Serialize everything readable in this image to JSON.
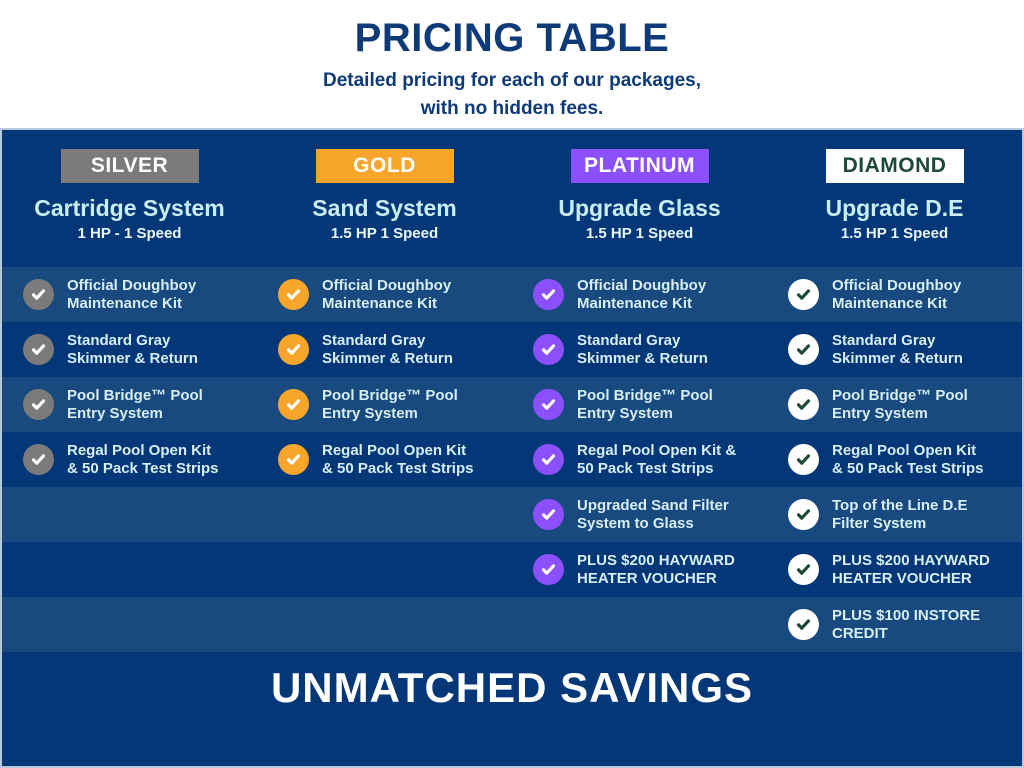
{
  "header": {
    "title": "PRICING TABLE",
    "subtitle_line1": "Detailed pricing for each of our packages,",
    "subtitle_line2": "with no hidden fees."
  },
  "columns": [
    {
      "tier": "SILVER",
      "title": "Cartridge System",
      "spec": "1 HP - 1 Speed",
      "badge_bg": "#7b7b7b",
      "badge_color": "#ffffff",
      "check_bg": "#7b7b7b",
      "check_color": "#ffffff"
    },
    {
      "tier": "GOLD",
      "title": "Sand System",
      "spec": "1.5 HP 1 Speed",
      "badge_bg": "#f8a62b",
      "badge_color": "#ffffff",
      "check_bg": "#f8a62b",
      "check_color": "#ffffff"
    },
    {
      "tier": "PLATINUM",
      "title": "Upgrade Glass",
      "spec": "1.5 HP 1 Speed",
      "badge_bg": "#8b50fb",
      "badge_color": "#ffffff",
      "check_bg": "#8b50fb",
      "check_color": "#ffffff"
    },
    {
      "tier": "DIAMOND",
      "title": "Upgrade D.E",
      "spec": "1.5 HP 1 Speed",
      "badge_bg": "#ffffff",
      "badge_color": "#1c4a36",
      "check_bg": "#ffffff",
      "check_color": "#1c4a34"
    }
  ],
  "feature_rows": [
    {
      "cells": [
        [
          "Official Doughboy",
          "Maintenance Kit"
        ],
        [
          "Official Doughboy",
          "Maintenance Kit"
        ],
        [
          "Official Doughboy",
          "Maintenance Kit"
        ],
        [
          "Official Doughboy",
          "Maintenance Kit"
        ]
      ]
    },
    {
      "cells": [
        [
          "Standard Gray",
          "Skimmer & Return"
        ],
        [
          "Standard Gray",
          "Skimmer & Return"
        ],
        [
          "Standard Gray",
          "Skimmer & Return"
        ],
        [
          "Standard Gray",
          "Skimmer & Return"
        ]
      ]
    },
    {
      "cells": [
        [
          "Pool Bridge™ Pool",
          "Entry System"
        ],
        [
          "Pool Bridge™ Pool",
          "Entry System"
        ],
        [
          "Pool Bridge™ Pool",
          "Entry System"
        ],
        [
          "Pool Bridge™ Pool",
          "Entry System"
        ]
      ]
    },
    {
      "cells": [
        [
          "Regal Pool Open Kit",
          "& 50 Pack Test Strips"
        ],
        [
          "Regal Pool Open Kit",
          "& 50 Pack Test Strips"
        ],
        [
          "Regal Pool Open Kit &",
          "50 Pack Test Strips"
        ],
        [
          "Regal Pool Open Kit",
          "& 50 Pack Test Strips"
        ]
      ]
    },
    {
      "cells": [
        null,
        null,
        [
          "Upgraded Sand Filter",
          "System to Glass"
        ],
        [
          "Top of the Line D.E",
          "Filter System"
        ]
      ]
    },
    {
      "cells": [
        null,
        null,
        [
          "PLUS $200 HAYWARD",
          "HEATER VOUCHER"
        ],
        [
          "PLUS $200 HAYWARD",
          "HEATER VOUCHER"
        ]
      ]
    },
    {
      "cells": [
        null,
        null,
        null,
        [
          "PLUS $100 INSTORE",
          "CREDIT"
        ]
      ]
    }
  ],
  "footer": {
    "banner": "UNMATCHED SAVINGS"
  },
  "colors": {
    "title_text": "#0e3a78",
    "table_bg": "#043778",
    "row_light": "#194a7f",
    "column_title_text": "#c8eef4",
    "spec_text": "#eaf7fb",
    "feature_text": "#d7eef3"
  },
  "chart_data": {
    "type": "table",
    "title": "PRICING TABLE",
    "subtitle": "Detailed pricing for each of our packages, with no hidden fees.",
    "footer": "UNMATCHED SAVINGS",
    "packages": [
      {
        "tier": "SILVER",
        "system": "Cartridge System",
        "pump": "1 HP - 1 Speed",
        "features": [
          "Official Doughboy Maintenance Kit",
          "Standard Gray Skimmer & Return",
          "Pool Bridge™ Pool Entry System",
          "Regal Pool Open Kit & 50 Pack Test Strips"
        ]
      },
      {
        "tier": "GOLD",
        "system": "Sand System",
        "pump": "1.5 HP 1 Speed",
        "features": [
          "Official Doughboy Maintenance Kit",
          "Standard Gray Skimmer & Return",
          "Pool Bridge™ Pool Entry System",
          "Regal Pool Open Kit & 50 Pack Test Strips"
        ]
      },
      {
        "tier": "PLATINUM",
        "system": "Upgrade Glass",
        "pump": "1.5 HP 1 Speed",
        "features": [
          "Official Doughboy Maintenance Kit",
          "Standard Gray Skimmer & Return",
          "Pool Bridge™ Pool Entry System",
          "Regal Pool Open Kit & 50 Pack Test Strips",
          "Upgraded Sand Filter System to Glass",
          "PLUS $200 HAYWARD HEATER VOUCHER"
        ]
      },
      {
        "tier": "DIAMOND",
        "system": "Upgrade D.E",
        "pump": "1.5 HP 1 Speed",
        "features": [
          "Official Doughboy Maintenance Kit",
          "Standard Gray Skimmer & Return",
          "Pool Bridge™ Pool Entry System",
          "Regal Pool Open Kit & 50 Pack Test Strips",
          "Top of the Line D.E Filter System",
          "PLUS $200 HAYWARD HEATER VOUCHER",
          "PLUS $100 INSTORE CREDIT"
        ]
      }
    ]
  }
}
